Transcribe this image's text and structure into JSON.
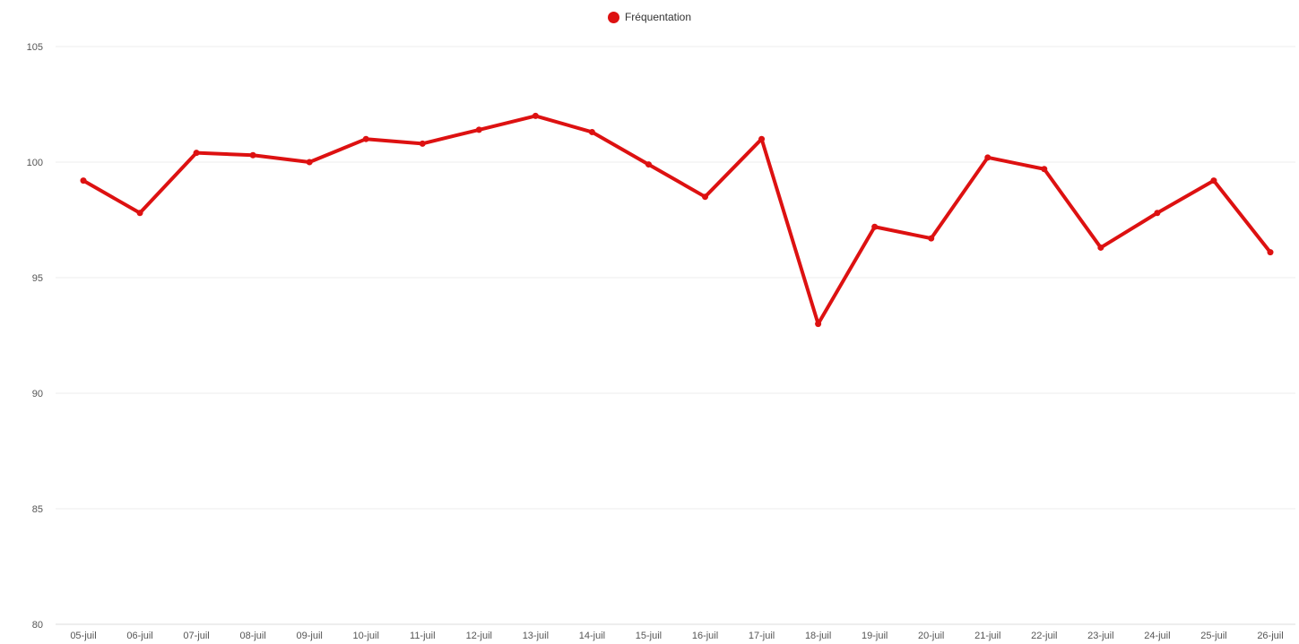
{
  "chart_data": {
    "type": "line",
    "title": "",
    "xlabel": "",
    "ylabel": "",
    "ylim": [
      80,
      105
    ],
    "yticks": [
      80,
      85,
      90,
      95,
      100,
      105
    ],
    "grid": true,
    "legend_position": "top-center",
    "categories": [
      "05-juil",
      "06-juil",
      "07-juil",
      "08-juil",
      "09-juil",
      "10-juil",
      "11-juil",
      "12-juil",
      "13-juil",
      "14-juil",
      "15-juil",
      "16-juil",
      "17-juil",
      "18-juil",
      "19-juil",
      "20-juil",
      "21-juil",
      "22-juil",
      "23-juil",
      "24-juil",
      "25-juil",
      "26-juil"
    ],
    "series": [
      {
        "name": "Fréquentation",
        "color": "#dd1111",
        "values": [
          99.2,
          97.8,
          100.4,
          100.3,
          100.0,
          101.0,
          100.8,
          101.4,
          102.0,
          101.3,
          99.9,
          98.5,
          101.0,
          93.0,
          97.2,
          96.7,
          100.2,
          99.7,
          96.3,
          97.8,
          99.2,
          96.1
        ]
      }
    ]
  }
}
